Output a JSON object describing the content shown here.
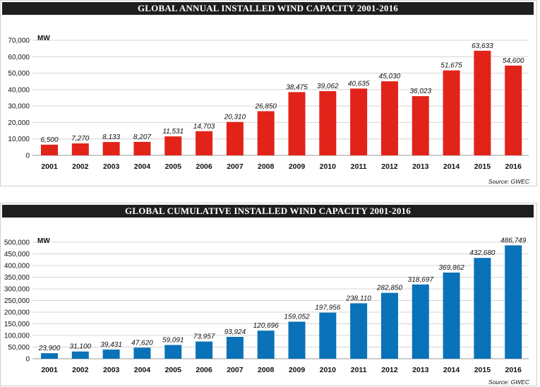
{
  "chart_data": [
    {
      "type": "bar",
      "title": "GLOBAL ANNUAL INSTALLED WIND CAPACITY 2001-2016",
      "unit": "MW",
      "source": "Source: GWEC",
      "color": "#e2231a",
      "categories": [
        "2001",
        "2002",
        "2003",
        "2004",
        "2005",
        "2006",
        "2007",
        "2008",
        "2009",
        "2010",
        "2011",
        "2012",
        "2013",
        "2014",
        "2015",
        "2016"
      ],
      "values": [
        6500,
        7270,
        8133,
        8207,
        11531,
        14703,
        20310,
        26850,
        38475,
        39062,
        40635,
        45030,
        36023,
        51675,
        63633,
        54600
      ],
      "value_labels": [
        "6,500",
        "7,270",
        "8,133",
        "8,207",
        "11,531",
        "14,703",
        "20,310",
        "26,850",
        "38,475",
        "39,062",
        "40,635",
        "45,030",
        "36,023",
        "51,675",
        "63,633",
        "54,600"
      ],
      "ylim": [
        0,
        70000
      ],
      "yticks": [
        0,
        10000,
        20000,
        30000,
        40000,
        50000,
        60000,
        70000
      ],
      "ytick_labels": [
        "0",
        "10,000",
        "20,000",
        "30,000",
        "40,000",
        "50,000",
        "60,000",
        "70,000"
      ],
      "grid": true
    },
    {
      "type": "bar",
      "title": "GLOBAL CUMULATIVE INSTALLED WIND CAPACITY 2001-2016",
      "unit": "MW",
      "source": "Source: GWEC",
      "color": "#0a72b8",
      "categories": [
        "2001",
        "2002",
        "2003",
        "2004",
        "2005",
        "2006",
        "2007",
        "2008",
        "2009",
        "2010",
        "2011",
        "2012",
        "2013",
        "2014",
        "2015",
        "2016"
      ],
      "values": [
        23900,
        31100,
        39431,
        47620,
        59091,
        73957,
        93924,
        120696,
        159052,
        197956,
        238110,
        282850,
        318697,
        369862,
        432680,
        486749
      ],
      "value_labels": [
        "23,900",
        "31,100",
        "39,431",
        "47,620",
        "59,091",
        "73,957",
        "93,924",
        "120,696",
        "159,052",
        "197,956",
        "238,110",
        "282,850",
        "318,697",
        "369,862",
        "432,680",
        "486,749"
      ],
      "ylim": [
        0,
        500000
      ],
      "yticks": [
        0,
        50000,
        100000,
        150000,
        200000,
        250000,
        300000,
        350000,
        400000,
        450000,
        500000
      ],
      "ytick_labels": [
        "0",
        "50,000",
        "100,000",
        "150,000",
        "200,000",
        "250,000",
        "300,000",
        "350,000",
        "400,000",
        "450,000",
        "500,000"
      ],
      "grid": true
    }
  ]
}
